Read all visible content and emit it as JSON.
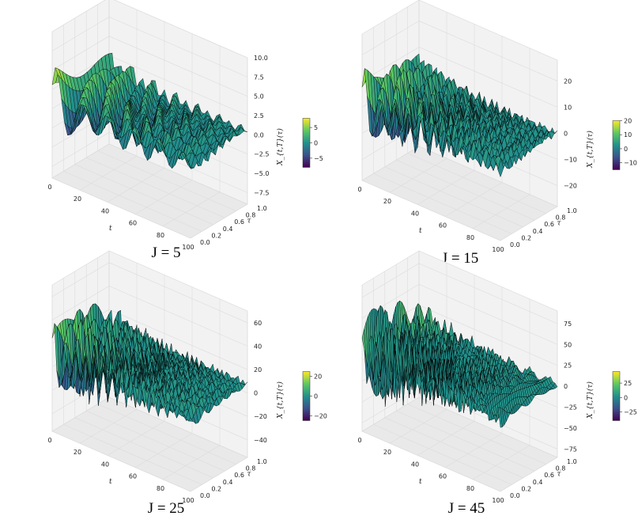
{
  "colors": {
    "colormap": [
      "#440154",
      "#3b528b",
      "#21918c",
      "#5ec962",
      "#fde725"
    ],
    "edge": "#000000"
  },
  "chart_data": [
    {
      "type": "surface3d",
      "caption": "J = 5",
      "xlabel": "t",
      "ylabel": "τ",
      "zlabel": "X_{t,T}(τ)",
      "x_ticks": [
        0,
        20,
        40,
        60,
        80,
        100
      ],
      "y_ticks": [
        "0.0",
        "0.2",
        "0.4",
        "0.6",
        "0.8",
        "1.0"
      ],
      "z_ticks": [
        "−7.5",
        "−5.0",
        "−2.5",
        "0.0",
        "2.5",
        "5.0",
        "7.5",
        "10.0"
      ],
      "zlim": [
        -9,
        10
      ],
      "colorbar_ticks": [
        "5",
        "0",
        "−5"
      ],
      "colorbar_range": [
        -8,
        8
      ],
      "J": 5
    },
    {
      "type": "surface3d",
      "caption": "J = 15",
      "xlabel": "t",
      "ylabel": "τ",
      "zlabel": "X_{t,T}(τ)",
      "x_ticks": [
        0,
        20,
        40,
        60,
        80,
        100
      ],
      "y_ticks": [
        "0.0",
        "0.2",
        "0.4",
        "0.6",
        "0.8",
        "1.0"
      ],
      "z_ticks": [
        "−20",
        "−10",
        "0",
        "10",
        "20"
      ],
      "zlim": [
        -28,
        28
      ],
      "colorbar_ticks": [
        "20",
        "10",
        "0",
        "−10"
      ],
      "colorbar_range": [
        -15,
        20
      ],
      "J": 15
    },
    {
      "type": "surface3d",
      "caption": "J = 25",
      "xlabel": "t",
      "ylabel": "τ",
      "zlabel": "X_{t,T}(τ)",
      "x_ticks": [
        0,
        20,
        40,
        60,
        80,
        100
      ],
      "y_ticks": [
        "0.0",
        "0.2",
        "0.4",
        "0.6",
        "0.8",
        "1.0"
      ],
      "z_ticks": [
        "−40",
        "−20",
        "0",
        "20",
        "40",
        "60"
      ],
      "zlim": [
        -55,
        70
      ],
      "colorbar_ticks": [
        "20",
        "0",
        "−20"
      ],
      "colorbar_range": [
        -25,
        25
      ],
      "J": 25
    },
    {
      "type": "surface3d",
      "caption": "J = 45",
      "xlabel": "t",
      "ylabel": "τ",
      "zlabel": "X_{t,T}(τ)",
      "x_ticks": [
        0,
        20,
        40,
        60,
        80,
        100
      ],
      "y_ticks": [
        "0.0",
        "0.2",
        "0.4",
        "0.6",
        "0.8",
        "1.0"
      ],
      "z_ticks": [
        "−75",
        "−50",
        "−25",
        "0",
        "25",
        "50",
        "75"
      ],
      "zlim": [
        -85,
        90
      ],
      "colorbar_ticks": [
        "25",
        "0",
        "−25"
      ],
      "colorbar_range": [
        -40,
        45
      ],
      "J": 45
    }
  ]
}
